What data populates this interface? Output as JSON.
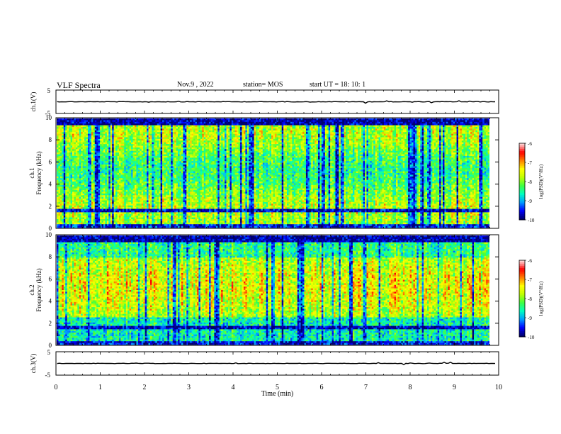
{
  "header": {
    "title": "VLF Spectra",
    "date": "Nov.9  , 2022",
    "station": "station= MOS",
    "start": "start  UT  =   18: 10: 1"
  },
  "chart_data": [
    {
      "type": "line",
      "panel": "channel-1-waveform",
      "ylabel": "ch.1(V)",
      "yticks": [
        "5",
        "-5"
      ],
      "ylim": [
        -5,
        5
      ],
      "xlim": [
        0,
        10
      ],
      "series": [
        {
          "values": [
            0,
            0
          ]
        }
      ]
    },
    {
      "type": "heatmap",
      "panel": "channel-1-spectrogram",
      "ylabel_line1": "ch.1",
      "ylabel_line2": "Frequency (kHz)",
      "ylim": [
        0,
        10
      ],
      "yticks": [
        "0",
        "2",
        "4",
        "6",
        "8",
        "10"
      ],
      "xlim": [
        0,
        10
      ],
      "colorbar": {
        "label": "log(PSD)(V²/Hz)",
        "range": [
          -10,
          -6
        ],
        "ticks": [
          "-6",
          "-7",
          "-8",
          "-9",
          "-10"
        ]
      }
    },
    {
      "type": "heatmap",
      "panel": "channel-2-spectrogram",
      "ylabel_line1": "ch.2",
      "ylabel_line2": "Frequency (kHz)",
      "ylim": [
        0,
        10
      ],
      "yticks": [
        "0",
        "2",
        "4",
        "6",
        "8",
        "10"
      ],
      "xlim": [
        0,
        10
      ],
      "colorbar": {
        "label": "log(PSD)(V²/Hz)",
        "range": [
          -10,
          -6
        ],
        "ticks": [
          "-6",
          "-7",
          "-8",
          "-9",
          "-10"
        ]
      }
    },
    {
      "type": "line",
      "panel": "channel-3-waveform",
      "ylabel": "ch.3(V)",
      "yticks": [
        "5",
        "-5"
      ],
      "ylim": [
        -5,
        5
      ],
      "xlim": [
        0,
        10
      ],
      "xlabel": "Time  (min)",
      "xticks": [
        "0",
        "1",
        "2",
        "3",
        "4",
        "5",
        "6",
        "7",
        "8",
        "9",
        "10"
      ],
      "series": [
        {
          "values": [
            0,
            0
          ]
        }
      ]
    }
  ],
  "colors": {
    "axis": "#000000",
    "colormap": [
      "#00006e",
      "#0000ff",
      "#00a0ff",
      "#00ffc0",
      "#40ff40",
      "#c0ff00",
      "#ffff00",
      "#ff8000",
      "#ff0000",
      "#ffd0d0"
    ]
  }
}
